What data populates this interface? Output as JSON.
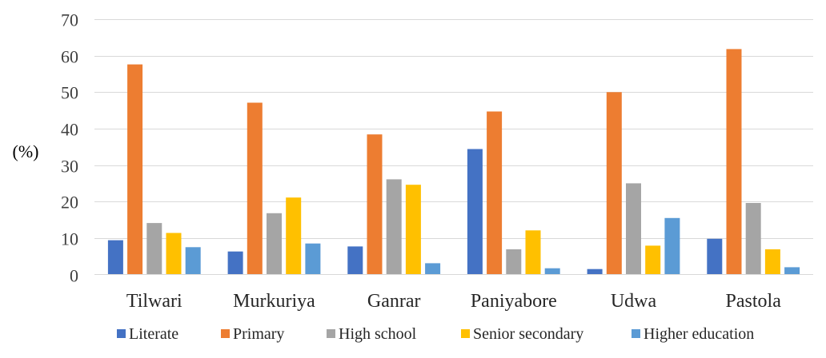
{
  "chart_data": {
    "type": "bar",
    "ylabel": "(%)",
    "xlabel": "",
    "ylim": [
      0,
      70
    ],
    "yticks": [
      0,
      10,
      20,
      30,
      40,
      50,
      60,
      70
    ],
    "grid": true,
    "legend_position": "bottom",
    "categories": [
      "Tilwari",
      "Murkuriya",
      "Ganrar",
      "Paniyabore",
      "Udwa",
      "Pastola"
    ],
    "series": [
      {
        "name": "Literate",
        "color": "#4472C4",
        "values": [
          9.4,
          6.3,
          7.7,
          34.4,
          1.5,
          9.8
        ]
      },
      {
        "name": "Primary",
        "color": "#ED7D31",
        "values": [
          57.6,
          47.1,
          38.4,
          44.7,
          50.0,
          61.8
        ]
      },
      {
        "name": "High school",
        "color": "#A5A5A5",
        "values": [
          14.1,
          16.8,
          26.1,
          6.9,
          25.0,
          19.6
        ]
      },
      {
        "name": "Senior secondary",
        "color": "#FFC000",
        "values": [
          11.4,
          21.1,
          24.6,
          12.1,
          7.9,
          6.9
        ]
      },
      {
        "name": "Higher education",
        "color": "#5B9BD5",
        "values": [
          7.5,
          8.5,
          3.1,
          1.7,
          15.5,
          2.0
        ]
      }
    ]
  }
}
